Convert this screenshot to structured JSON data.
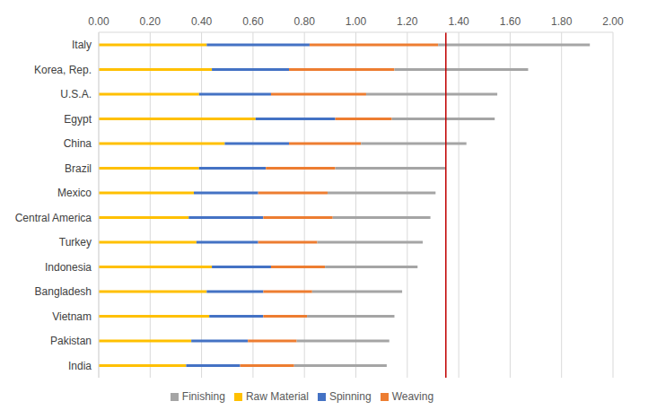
{
  "chart_data": {
    "type": "bar",
    "orientation": "horizontal",
    "stacked": true,
    "grid": true,
    "legend": "bottom",
    "categories": [
      "Italy",
      "Korea, Rep.",
      "U.S.A.",
      "Egypt",
      "China",
      "Brazil",
      "Mexico",
      "Central America",
      "Turkey",
      "Indonesia",
      "Bangladesh",
      "Vietnam",
      "Pakistan",
      "India"
    ],
    "series": [
      {
        "name": "Raw Material",
        "color": "#ffc000",
        "values": [
          0.42,
          0.44,
          0.39,
          0.61,
          0.49,
          0.39,
          0.37,
          0.35,
          0.38,
          0.44,
          0.42,
          0.43,
          0.36,
          0.34
        ]
      },
      {
        "name": "Spinning",
        "color": "#4472c4",
        "values": [
          0.4,
          0.3,
          0.28,
          0.31,
          0.25,
          0.26,
          0.25,
          0.29,
          0.24,
          0.23,
          0.22,
          0.21,
          0.22,
          0.21
        ]
      },
      {
        "name": "Weaving",
        "color": "#ed7d31",
        "values": [
          0.5,
          0.41,
          0.37,
          0.22,
          0.28,
          0.27,
          0.27,
          0.27,
          0.23,
          0.21,
          0.19,
          0.17,
          0.19,
          0.21
        ]
      },
      {
        "name": "Finishing",
        "color": "#a5a5a5",
        "values": [
          0.59,
          0.52,
          0.51,
          0.4,
          0.41,
          0.43,
          0.42,
          0.38,
          0.41,
          0.36,
          0.35,
          0.34,
          0.36,
          0.36
        ]
      }
    ],
    "xlim": [
      0,
      2
    ],
    "xticks": [
      {
        "value": 0,
        "label": "0.00"
      },
      {
        "value": 0.2,
        "label": "0.20"
      },
      {
        "value": 0.4,
        "label": "0.40"
      },
      {
        "value": 0.6,
        "label": "0.60"
      },
      {
        "value": 0.8,
        "label": "0.80"
      },
      {
        "value": 1,
        "label": "1.00"
      },
      {
        "value": 1.2,
        "label": "1.20"
      },
      {
        "value": 1.4,
        "label": "1.40"
      },
      {
        "value": 1.6,
        "label": "1.60"
      },
      {
        "value": 1.8,
        "label": "1.80"
      },
      {
        "value": 2,
        "label": "2.00"
      }
    ],
    "reference_line": {
      "value": 1.35,
      "color": "#c00000"
    }
  }
}
